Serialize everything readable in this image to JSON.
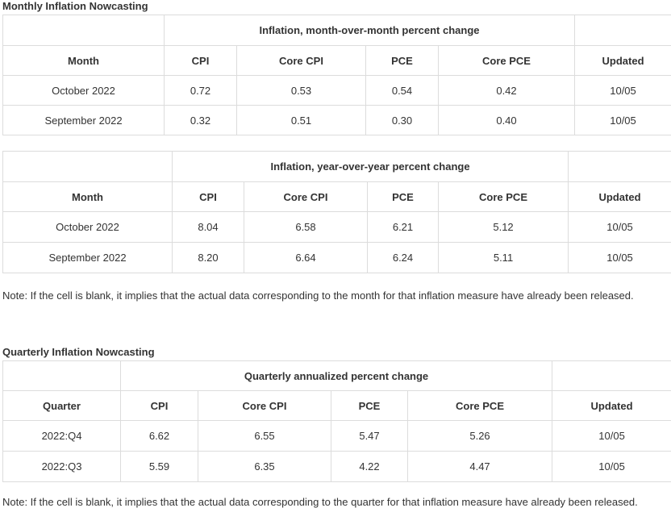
{
  "monthly": {
    "title": "Monthly Inflation Nowcasting",
    "tables": [
      {
        "group_header": "Inflation, month-over-month percent change",
        "columns": [
          "Month",
          "CPI",
          "Core CPI",
          "PCE",
          "Core PCE",
          "Updated"
        ],
        "rows": [
          [
            "October 2022",
            "0.72",
            "0.53",
            "0.54",
            "0.42",
            "10/05"
          ],
          [
            "September 2022",
            "0.32",
            "0.51",
            "0.30",
            "0.40",
            "10/05"
          ]
        ]
      },
      {
        "group_header": "Inflation, year-over-year percent change",
        "columns": [
          "Month",
          "CPI",
          "Core CPI",
          "PCE",
          "Core PCE",
          "Updated"
        ],
        "rows": [
          [
            "October 2022",
            "8.04",
            "6.58",
            "6.21",
            "5.12",
            "10/05"
          ],
          [
            "September 2022",
            "8.20",
            "6.64",
            "6.24",
            "5.11",
            "10/05"
          ]
        ]
      }
    ],
    "note": "Note: If the cell is blank, it implies that the actual data corresponding to the month for that inflation measure have already been released."
  },
  "quarterly": {
    "title": "Quarterly Inflation Nowcasting",
    "table": {
      "group_header": "Quarterly annualized percent change",
      "columns": [
        "Quarter",
        "CPI",
        "Core CPI",
        "PCE",
        "Core PCE",
        "Updated"
      ],
      "rows": [
        [
          "2022:Q4",
          "6.62",
          "6.55",
          "5.47",
          "5.26",
          "10/05"
        ],
        [
          "2022:Q3",
          "5.59",
          "6.35",
          "4.22",
          "4.47",
          "10/05"
        ]
      ]
    },
    "note": "Note: If the cell is blank, it implies that the actual data corresponding to the quarter for that inflation measure have already been released."
  }
}
